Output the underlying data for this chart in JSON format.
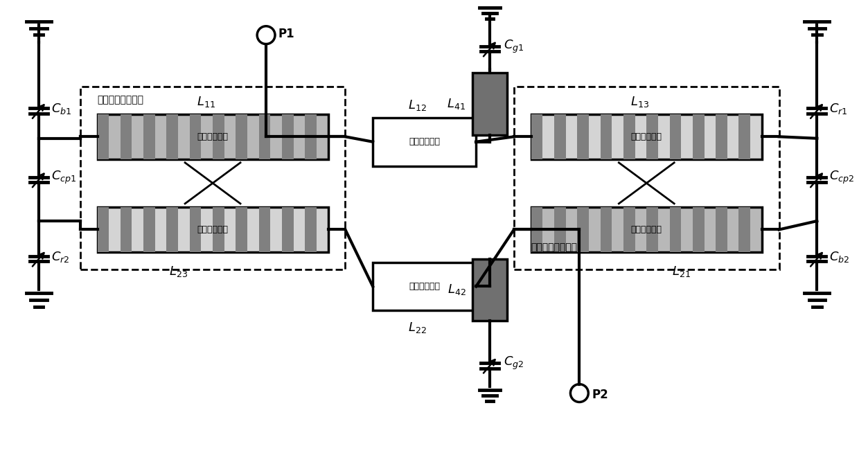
{
  "fig_width": 12.4,
  "fig_height": 6.54,
  "bg_color": "#ffffff",
  "lw": 2.5,
  "tlw": 3.0,
  "labels": {
    "Cb1": "$C_{b1}$",
    "Ccp1": "$C_{cp1}$",
    "Cr2": "$C_{r2}$",
    "Cr1": "$C_{r1}$",
    "Ccp2": "$C_{cp2}$",
    "Cb2": "$C_{b2}$",
    "Cg1": "$C_{g1}$",
    "Cg2": "$C_{g2}$",
    "L11": "$L_{11}$",
    "L23": "$L_{23}$",
    "L12": "$L_{12}$",
    "L22": "$L_{22}$",
    "L13": "$L_{13}$",
    "L21": "$L_{21}$",
    "L41": "$L_{41}$",
    "L42": "$L_{42}$",
    "P1": "P1",
    "P2": "P2",
    "group1": "第一组耦合微带线",
    "group2": "第二组耦合微带线",
    "sec1": "第一节微带线",
    "sec2": "第二节微带线",
    "sec3": "第三节微带线"
  }
}
